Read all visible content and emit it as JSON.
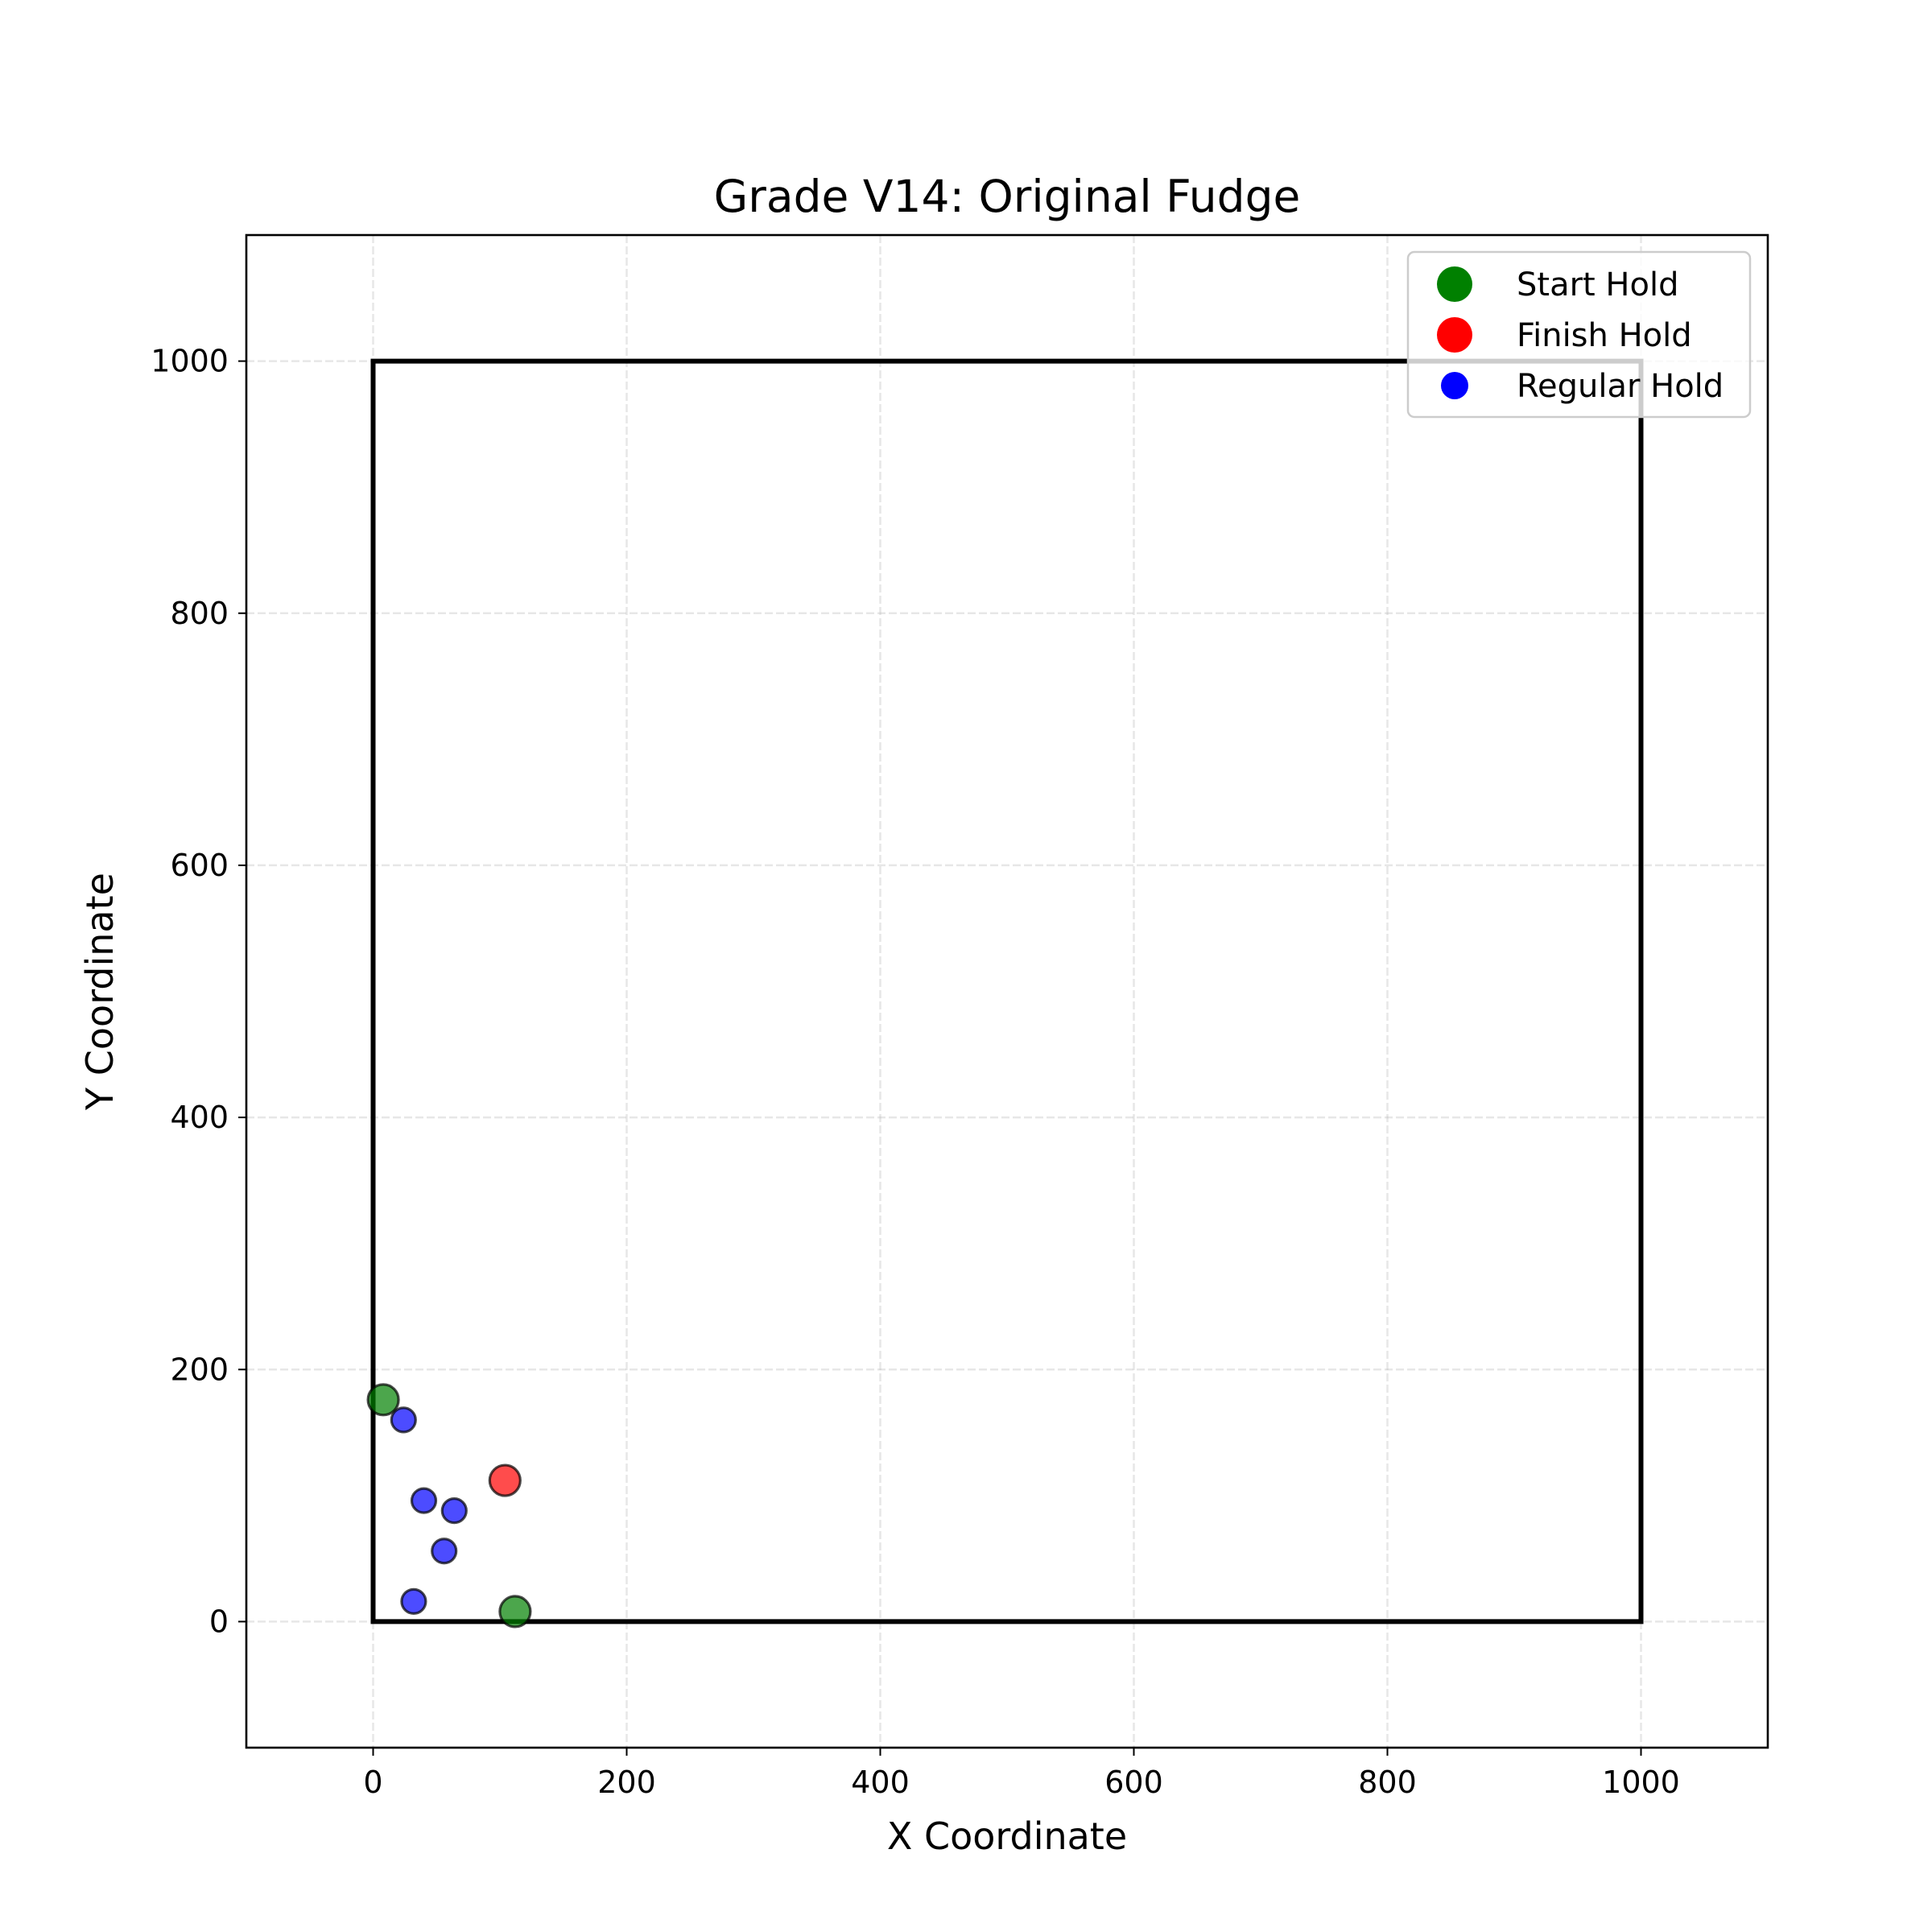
{
  "chart_data": {
    "type": "scatter",
    "title": "Grade V14: Original Fudge",
    "xlabel": "X Coordinate",
    "ylabel": "Y Coordinate",
    "xlim": [
      -100,
      1100
    ],
    "ylim": [
      -100,
      1100
    ],
    "xticks": [
      0,
      200,
      400,
      600,
      800,
      1000
    ],
    "yticks": [
      0,
      200,
      400,
      600,
      800,
      1000
    ],
    "grid": true,
    "legend_position": "top-right",
    "boundary": [
      [
        0,
        0
      ],
      [
        1000,
        0
      ],
      [
        1000,
        1000
      ],
      [
        0,
        1000
      ]
    ],
    "series": [
      {
        "name": "Start Hold",
        "color": "#008000",
        "points": [
          [
            8,
            176
          ],
          [
            112,
            8
          ]
        ]
      },
      {
        "name": "Finish Hold",
        "color": "#ff0000",
        "points": [
          [
            104,
            112
          ]
        ]
      },
      {
        "name": "Regular Hold",
        "color": "#0000ff",
        "points": [
          [
            24,
            160
          ],
          [
            40,
            96
          ],
          [
            64,
            88
          ],
          [
            56,
            56
          ],
          [
            32,
            16
          ]
        ]
      }
    ]
  }
}
